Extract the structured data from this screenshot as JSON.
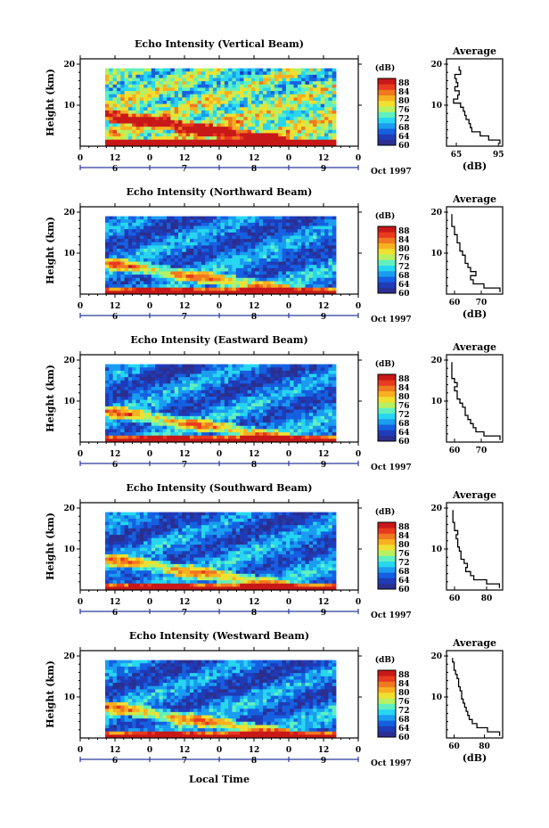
{
  "figure": {
    "xlabel": "Local Time",
    "month_label": "Oct 1997",
    "hour_ticks": [
      "0",
      "12",
      "0",
      "12",
      "0",
      "12",
      "0",
      "12",
      "0"
    ],
    "day_labels": [
      "6",
      "7",
      "8",
      "9"
    ],
    "colorbar": {
      "unit": "(dB)",
      "ticks": [
        "60",
        "64",
        "68",
        "72",
        "76",
        "80",
        "84",
        "88"
      ],
      "range": [
        60,
        90
      ]
    },
    "colormap": [
      "#2b2f8f",
      "#1f3bb8",
      "#1560e0",
      "#1a9cf0",
      "#27d6f0",
      "#60f0c0",
      "#b8f060",
      "#f0e030",
      "#f8b020",
      "#f07820",
      "#e83a1e",
      "#c81818"
    ]
  },
  "chart_data": [
    {
      "type": "heatmap",
      "title": "Echo Intensity (Vertical Beam)",
      "ylabel": "Height (km)",
      "yticks": [
        "20",
        "10"
      ],
      "ylim": [
        0,
        20
      ],
      "profile": {
        "title": "Average",
        "xlabel": "(dB)",
        "xticks": [
          "65",
          "95"
        ],
        "xlim": [
          58,
          98
        ],
        "yticks": [
          "20",
          "10"
        ],
        "heights": [
          1,
          2,
          3,
          4,
          5,
          6,
          7,
          8,
          9,
          10,
          11,
          12,
          13,
          14,
          15,
          16,
          17,
          18,
          19
        ],
        "values": [
          96,
          88,
          82,
          76,
          75,
          74,
          72,
          71,
          70,
          68,
          63,
          66,
          67,
          64,
          66,
          65,
          64,
          68,
          67
        ]
      }
    },
    {
      "type": "heatmap",
      "title": "Echo Intensity (Northward Beam)",
      "ylabel": "Height (km)",
      "yticks": [
        "20",
        "10"
      ],
      "ylim": [
        0,
        20
      ],
      "profile": {
        "title": "Average",
        "xlabel": "(dB)",
        "xticks": [
          "60",
          "70"
        ],
        "xlim": [
          57,
          78
        ],
        "yticks": [
          "20",
          "10"
        ],
        "heights": [
          1,
          2,
          3,
          4,
          5,
          6,
          7,
          8,
          9,
          10,
          11,
          12,
          13,
          14,
          15,
          16,
          17,
          18,
          19
        ],
        "values": [
          77,
          71,
          67,
          66,
          68,
          66,
          65,
          64,
          64,
          63,
          62,
          62,
          61,
          61,
          60,
          60,
          59,
          59,
          59
        ]
      }
    },
    {
      "type": "heatmap",
      "title": "Echo Intensity (Eastward Beam)",
      "ylabel": "Height (km)",
      "yticks": [
        "20",
        "10"
      ],
      "ylim": [
        0,
        20
      ],
      "profile": {
        "title": "Average",
        "xlabel": "",
        "xticks": [
          "60",
          "70"
        ],
        "xlim": [
          57,
          78
        ],
        "yticks": [
          "20",
          "10"
        ],
        "heights": [
          1,
          2,
          3,
          4,
          5,
          6,
          7,
          8,
          9,
          10,
          11,
          12,
          13,
          14,
          15,
          16,
          17,
          18,
          19
        ],
        "values": [
          77,
          71,
          68,
          67,
          66,
          65,
          64,
          64,
          63,
          62,
          61,
          61,
          60,
          61,
          60,
          59,
          59,
          59,
          59
        ]
      }
    },
    {
      "type": "heatmap",
      "title": "Echo Intensity (Southward Beam)",
      "ylabel": "Height (km)",
      "yticks": [
        "20",
        "10"
      ],
      "ylim": [
        0,
        20
      ],
      "profile": {
        "title": "Average",
        "xlabel": "",
        "xticks": [
          "60",
          "80"
        ],
        "xlim": [
          55,
          90
        ],
        "yticks": [
          "20",
          "10"
        ],
        "heights": [
          1,
          2,
          3,
          4,
          5,
          6,
          7,
          8,
          9,
          10,
          11,
          12,
          13,
          14,
          15,
          16,
          17,
          18,
          19
        ],
        "values": [
          88,
          80,
          72,
          70,
          67,
          68,
          66,
          64,
          64,
          63,
          62,
          62,
          61,
          62,
          60,
          60,
          59,
          59,
          59
        ]
      }
    },
    {
      "type": "heatmap",
      "title": "Echo Intensity (Westward Beam)",
      "ylabel": "Height (km)",
      "yticks": [
        "20",
        "10"
      ],
      "ylim": [
        0,
        20
      ],
      "profile": {
        "title": "Average",
        "xlabel": "(dB)",
        "xticks": [
          "60",
          "80"
        ],
        "xlim": [
          55,
          92
        ],
        "yticks": [
          "20",
          "10"
        ],
        "heights": [
          1,
          2,
          3,
          4,
          5,
          6,
          7,
          8,
          9,
          10,
          11,
          12,
          13,
          14,
          15,
          16,
          17,
          18,
          19
        ],
        "values": [
          90,
          82,
          75,
          72,
          70,
          69,
          68,
          67,
          66,
          65,
          65,
          64,
          63,
          63,
          62,
          61,
          60,
          60,
          59
        ]
      }
    }
  ]
}
